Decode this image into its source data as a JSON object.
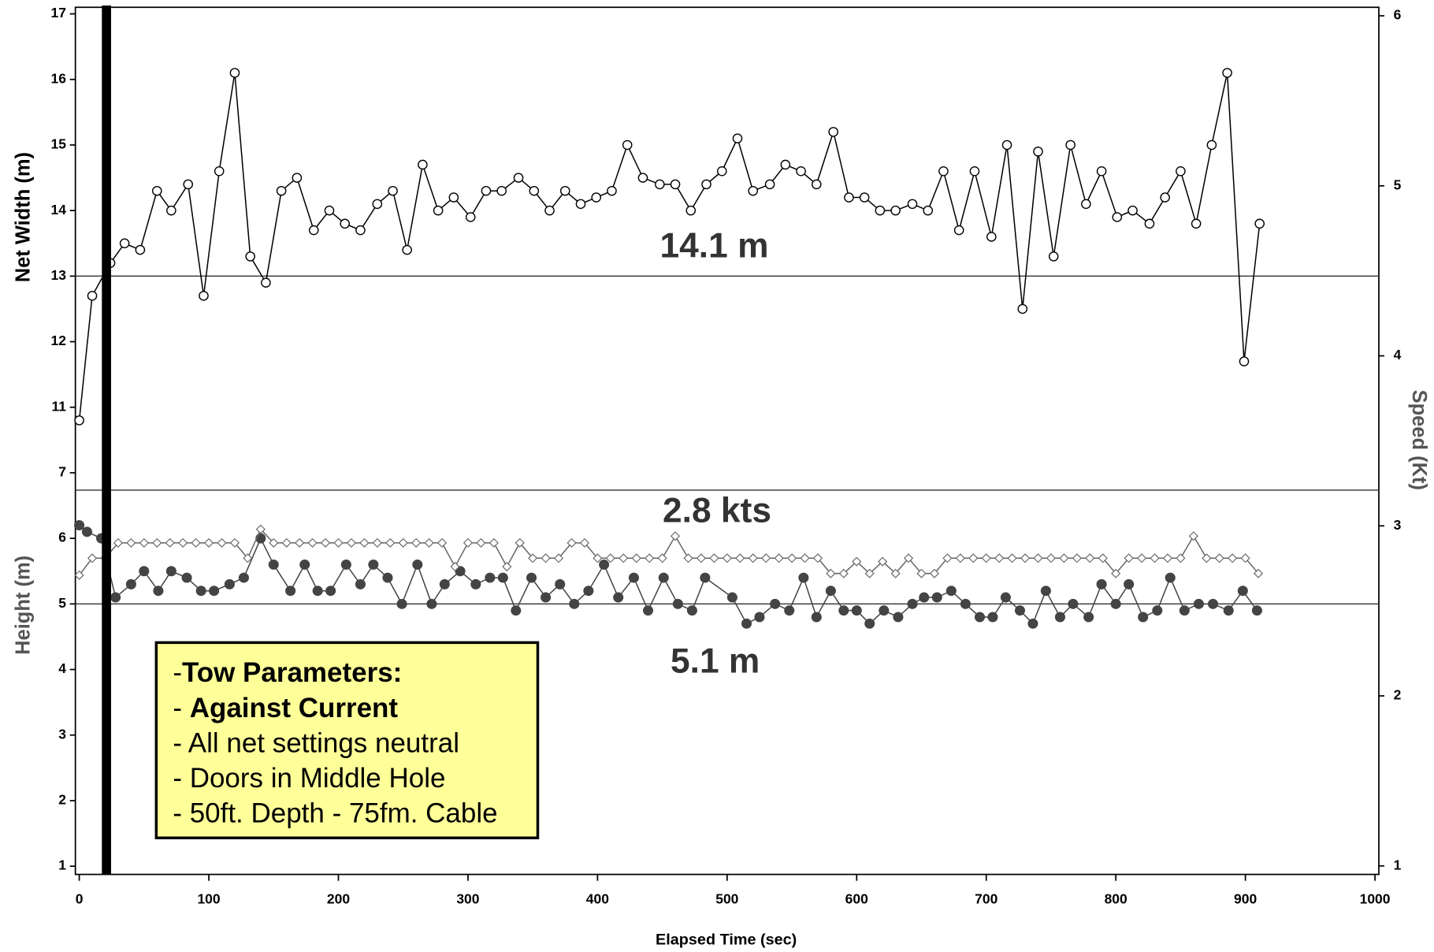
{
  "chart_data": {
    "type": "line",
    "x_label": "Elapsed Time (sec)",
    "y_label": "Net Width (m)",
    "height_label": "Height (m)",
    "y2_label": "Speed (Kt)",
    "xlim": [
      -3,
      1003
    ],
    "xticks": [
      0,
      100,
      200,
      300,
      400,
      500,
      600,
      700,
      800,
      900,
      1000
    ],
    "ylim": [
      10,
      17.1
    ],
    "yticks": [
      11,
      12,
      13,
      14,
      15,
      16,
      17
    ],
    "height_ylim": [
      0.875,
      7
    ],
    "height_ticks": [
      1,
      2,
      3,
      4,
      5,
      6,
      7
    ],
    "y2lim": [
      0.95,
      6.05
    ],
    "y2ticks": [
      1,
      2,
      3,
      4,
      5,
      6
    ],
    "marker_x": 21,
    "series": [
      {
        "axis": "y",
        "marker": "hollow",
        "color": "#000000",
        "x": [
          0,
          10,
          24,
          35,
          47,
          60,
          71,
          84,
          96,
          108,
          120,
          132,
          144,
          156,
          168,
          181,
          193,
          205,
          217,
          230,
          242,
          253,
          265,
          277,
          289,
          302,
          314,
          326,
          339,
          351,
          363,
          375,
          387,
          399,
          411,
          423,
          435,
          448,
          460,
          472,
          484,
          496,
          508,
          520,
          533,
          545,
          557,
          569,
          582,
          594,
          606,
          618,
          630,
          643,
          655,
          667,
          679,
          691,
          704,
          716,
          728,
          740,
          752,
          765,
          777,
          789,
          801,
          813,
          826,
          838,
          850,
          862,
          874,
          886,
          899,
          911
        ],
        "values": [
          10.8,
          12.7,
          13.2,
          13.5,
          13.4,
          14.3,
          14.0,
          14.4,
          12.7,
          14.6,
          16.1,
          13.3,
          12.9,
          14.3,
          14.5,
          13.7,
          14.0,
          13.8,
          13.7,
          14.1,
          14.3,
          13.4,
          14.7,
          14.0,
          14.2,
          13.9,
          14.3,
          14.3,
          14.5,
          14.3,
          14.0,
          14.3,
          14.1,
          14.2,
          14.3,
          15.0,
          14.5,
          14.4,
          14.4,
          14.0,
          14.4,
          14.6,
          15.1,
          14.3,
          14.4,
          14.7,
          14.6,
          14.4,
          15.2,
          14.2,
          14.2,
          14.0,
          14.0,
          14.1,
          14.0,
          14.6,
          13.7,
          14.6,
          13.6,
          15.0,
          12.5,
          14.9,
          13.3,
          15.0,
          14.1,
          14.6,
          13.9,
          14.0,
          13.8,
          14.2,
          14.6,
          13.8,
          15.0,
          16.1,
          11.7,
          13.8
        ]
      },
      {
        "axis": "height",
        "marker": "filled",
        "color": "#444444",
        "x": [
          0,
          6,
          17,
          28,
          40,
          50,
          61,
          71,
          83,
          94,
          104,
          116,
          127,
          140,
          150,
          163,
          174,
          184,
          194,
          206,
          217,
          227,
          238,
          249,
          261,
          272,
          282,
          294,
          306,
          317,
          327,
          337,
          349,
          360,
          371,
          382,
          393,
          405,
          416,
          428,
          439,
          451,
          462,
          473,
          483,
          504,
          515,
          525,
          537,
          548,
          559,
          569,
          580,
          590,
          600,
          610,
          621,
          632,
          643,
          652,
          662,
          673,
          684,
          695,
          705,
          715,
          726,
          736,
          746,
          757,
          767,
          779,
          789,
          800,
          810,
          821,
          832,
          842,
          853,
          864,
          875,
          887,
          898,
          909
        ],
        "values": [
          6.2,
          6.1,
          6.0,
          5.1,
          5.3,
          5.5,
          5.2,
          5.5,
          5.4,
          5.2,
          5.2,
          5.3,
          5.4,
          6.0,
          5.6,
          5.2,
          5.6,
          5.2,
          5.2,
          5.6,
          5.3,
          5.6,
          5.4,
          5.0,
          5.6,
          5.0,
          5.3,
          5.5,
          5.3,
          5.4,
          5.4,
          4.9,
          5.4,
          5.1,
          5.3,
          5.0,
          5.2,
          5.6,
          5.1,
          5.4,
          4.9,
          5.4,
          5.0,
          4.9,
          5.4,
          5.1,
          4.7,
          4.8,
          5.0,
          4.9,
          5.4,
          4.8,
          5.2,
          4.9,
          4.9,
          4.7,
          4.9,
          4.8,
          5.0,
          5.1,
          5.1,
          5.2,
          5.0,
          4.8,
          4.8,
          5.1,
          4.9,
          4.7,
          5.2,
          4.8,
          5.0,
          4.8,
          5.3,
          5.0,
          5.3,
          4.8,
          4.9,
          5.4,
          4.9,
          5.0,
          5.0,
          4.9,
          5.2,
          4.9
        ]
      },
      {
        "axis": "y2",
        "marker": "diamond",
        "color": "#666666",
        "x": [
          0,
          10,
          20,
          30,
          40,
          50,
          60,
          70,
          80,
          90,
          100,
          110,
          120,
          130,
          140,
          150,
          160,
          170,
          180,
          190,
          200,
          210,
          220,
          230,
          240,
          250,
          260,
          270,
          280,
          290,
          300,
          310,
          320,
          330,
          340,
          350,
          360,
          370,
          380,
          390,
          400,
          410,
          420,
          430,
          440,
          450,
          460,
          470,
          480,
          490,
          500,
          510,
          520,
          530,
          540,
          550,
          560,
          570,
          580,
          590,
          600,
          610,
          620,
          630,
          640,
          650,
          660,
          670,
          680,
          690,
          700,
          710,
          720,
          730,
          740,
          750,
          760,
          770,
          780,
          790,
          800,
          810,
          820,
          830,
          840,
          850,
          860,
          870,
          880,
          890,
          900,
          910
        ],
        "values": [
          2.71,
          2.81,
          2.81,
          2.9,
          2.9,
          2.9,
          2.9,
          2.9,
          2.9,
          2.9,
          2.9,
          2.9,
          2.9,
          2.81,
          2.98,
          2.9,
          2.9,
          2.9,
          2.9,
          2.9,
          2.9,
          2.9,
          2.9,
          2.9,
          2.9,
          2.9,
          2.9,
          2.9,
          2.9,
          2.76,
          2.9,
          2.9,
          2.9,
          2.76,
          2.9,
          2.81,
          2.81,
          2.81,
          2.9,
          2.9,
          2.81,
          2.81,
          2.81,
          2.81,
          2.81,
          2.81,
          2.94,
          2.81,
          2.81,
          2.81,
          2.81,
          2.81,
          2.81,
          2.81,
          2.81,
          2.81,
          2.81,
          2.81,
          2.72,
          2.72,
          2.79,
          2.72,
          2.79,
          2.72,
          2.81,
          2.72,
          2.72,
          2.81,
          2.81,
          2.81,
          2.81,
          2.81,
          2.81,
          2.81,
          2.81,
          2.81,
          2.81,
          2.81,
          2.81,
          2.81,
          2.72,
          2.81,
          2.81,
          2.81,
          2.81,
          2.81,
          2.94,
          2.81,
          2.81,
          2.81,
          2.81,
          2.72
        ]
      }
    ],
    "reference_lines": [
      {
        "axis": "y",
        "value": 13,
        "label": "14.1 m"
      },
      {
        "axis": "y2",
        "value": 3.21,
        "label": "2.8 kts"
      },
      {
        "axis": "height",
        "value": 5,
        "label": "5.1 m"
      }
    ],
    "text_box": {
      "lines": [
        [
          "-",
          "Tow Parameters:"
        ],
        [
          "- ",
          "Against Current"
        ],
        [
          "- All net settings neutral"
        ],
        [
          "- Doors in Middle Hole"
        ],
        [
          "- 50ft. Depth - 75fm. Cable"
        ]
      ]
    }
  }
}
